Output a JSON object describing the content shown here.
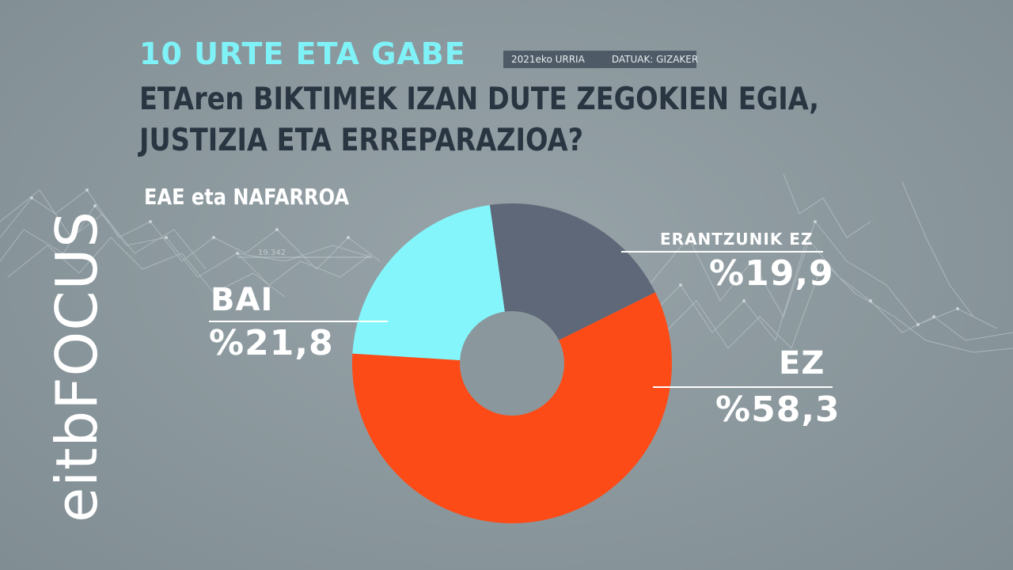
{
  "header": {
    "topic": "10 URTE ETA GABE",
    "date": "2021eko URRIA",
    "source": "DATUAK: GIZAKER",
    "question_line1": "ETAren BIKTIMEK IZAN DUTE ZEGOKIEN EGIA,",
    "question_line2": "JUSTIZIA ETA ERREPARAZIOA?",
    "region": "EAE eta NAFARROA"
  },
  "branding": {
    "part1": "eitb",
    "part2": "FOCUS"
  },
  "background": {
    "watermark_number": "19.342"
  },
  "colors": {
    "bai": "#84f6fb",
    "erantzunik_ez": "#5f6878",
    "ez": "#fd4b17",
    "hole": "#8a979c"
  },
  "chart_data": {
    "type": "pie",
    "donut": true,
    "title": "ETAren BIKTIMEK IZAN DUTE ZEGOKIEN EGIA, JUSTIZIA ETA ERREPARAZIOA?",
    "slices": [
      {
        "label": "ERANTZUNIK EZ",
        "value": 19.9,
        "display": "%19,9",
        "color": "#5f6878"
      },
      {
        "label": "EZ",
        "value": 58.3,
        "display": "%58,3",
        "color": "#fd4b17"
      },
      {
        "label": "BAI",
        "value": 21.8,
        "display": "%21,8",
        "color": "#84f6fb"
      }
    ]
  }
}
